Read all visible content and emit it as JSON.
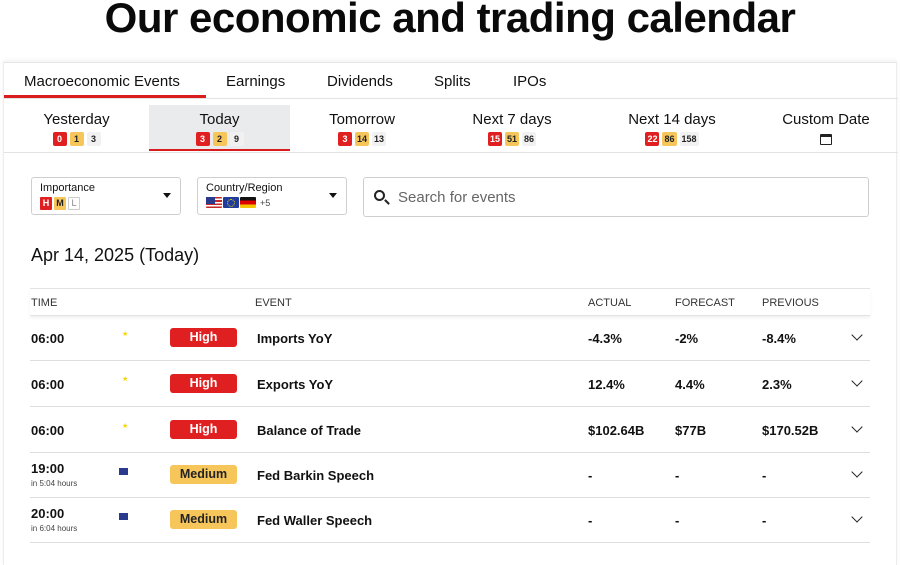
{
  "page_title": "Our economic and trading calendar",
  "tabs": [
    "Macroeconomic Events",
    "Earnings",
    "Dividends",
    "Splits",
    "IPOs"
  ],
  "active_tab": "Macroeconomic Events",
  "days": [
    {
      "label": "Yesterday",
      "high": "0",
      "medium": "1",
      "low": "3"
    },
    {
      "label": "Today",
      "high": "3",
      "medium": "2",
      "low": "9"
    },
    {
      "label": "Tomorrow",
      "high": "3",
      "medium": "14",
      "low": "13"
    },
    {
      "label": "Next 7 days",
      "high": "15",
      "medium": "51",
      "low": "86"
    },
    {
      "label": "Next 14 days",
      "high": "22",
      "medium": "86",
      "low": "158"
    },
    {
      "label": "Custom Date"
    }
  ],
  "active_day": "Today",
  "filters": {
    "importance": {
      "label": "Importance",
      "tags": [
        "H",
        "M",
        "L"
      ]
    },
    "country": {
      "label": "Country/Region",
      "more": "+5"
    }
  },
  "search": {
    "placeholder": "Search for events"
  },
  "date_heading": "Apr 14, 2025 (Today)",
  "table": {
    "columns": {
      "time": "TIME",
      "event": "EVENT",
      "actual": "ACTUAL",
      "forecast": "FORECAST",
      "previous": "PREVIOUS"
    },
    "rows": [
      {
        "time": "06:00",
        "sub": "",
        "country": "cn",
        "importance": "High",
        "event": "Imports YoY",
        "actual": "-4.3%",
        "forecast": "-2%",
        "previous": "-8.4%"
      },
      {
        "time": "06:00",
        "sub": "",
        "country": "cn",
        "importance": "High",
        "event": "Exports YoY",
        "actual": "12.4%",
        "forecast": "4.4%",
        "previous": "2.3%"
      },
      {
        "time": "06:00",
        "sub": "",
        "country": "cn",
        "importance": "High",
        "event": "Balance of Trade",
        "actual": "$102.64B",
        "forecast": "$77B",
        "previous": "$170.52B"
      },
      {
        "time": "19:00",
        "sub": "in 5:04 hours",
        "country": "us",
        "importance": "Medium",
        "event": "Fed Barkin Speech",
        "actual": "-",
        "forecast": "-",
        "previous": "-"
      },
      {
        "time": "20:00",
        "sub": "in 6:04 hours",
        "country": "us",
        "importance": "Medium",
        "event": "Fed Waller Speech",
        "actual": "-",
        "forecast": "-",
        "previous": "-"
      }
    ]
  },
  "colors": {
    "accent": "#d91d1d",
    "high": "#e02020",
    "medium": "#f6c65b",
    "active_day_bg": "#e9ebed"
  }
}
